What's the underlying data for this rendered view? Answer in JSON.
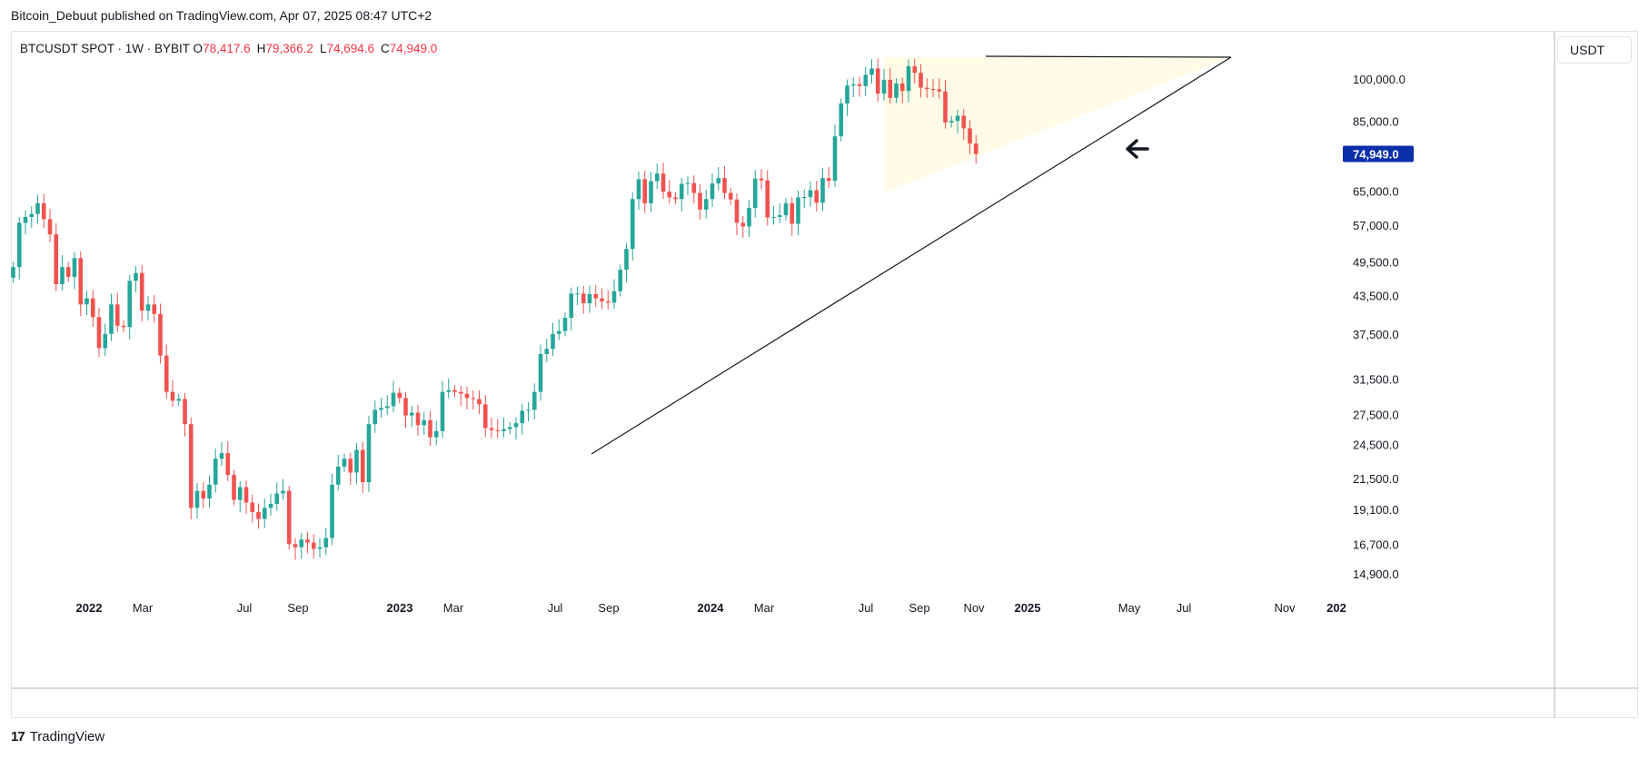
{
  "header": {
    "publisher": "Bitcoin_Debuut published on TradingView.com, Apr 07, 2025 08:47 UTC+2"
  },
  "legend": {
    "symbol": "BTCUSDT SPOT · 1W · BYBIT",
    "open_label": "O",
    "open": "78,417.6",
    "high_label": "H",
    "high": "79,366.2",
    "low_label": "L",
    "low": "74,694.6",
    "close_label": "C",
    "close": "74,949.0"
  },
  "currency_button": "USDT",
  "footer": {
    "brand": "TradingView",
    "logo": "17"
  },
  "colors": {
    "up": "#26a69a",
    "down": "#ef5350",
    "price_tag": "#0a2fa8",
    "zone": "#fffbe6"
  },
  "chart_data": {
    "type": "candlestick",
    "symbol": "BTCUSDT",
    "interval": "1W",
    "y_scale": "log",
    "last_price": "74,949.0",
    "y_ticks": [
      "100,000.0",
      "85,000.0",
      "65,000.0",
      "57,000.0",
      "49,500.0",
      "43,500.0",
      "37,500.0",
      "31,500.0",
      "27,500.0",
      "24,500.0",
      "21,500.0",
      "19,100.0",
      "16,700.0",
      "14,900.0"
    ],
    "x_ticks": [
      "2022",
      "Mar",
      "Jul",
      "Sep",
      "2023",
      "Mar",
      "Jul",
      "Sep",
      "2024",
      "Mar",
      "Jul",
      "Sep",
      "Nov",
      "2025",
      "May",
      "Jul",
      "Nov",
      "202"
    ],
    "closes": [
      48500,
      57500,
      58800,
      59500,
      62000,
      58300,
      55000,
      45400,
      48500,
      46700,
      50200,
      42000,
      43000,
      40000,
      35500,
      37500,
      42000,
      38700,
      38500,
      46000,
      47400,
      41000,
      42000,
      40500,
      34500,
      30000,
      29000,
      29200,
      26500,
      19200,
      20500,
      19900,
      21000,
      23200,
      23700,
      21800,
      19800,
      20800,
      19600,
      18900,
      18400,
      19200,
      19500,
      20300,
      20500,
      16700,
      16500,
      17000,
      16800,
      16400,
      16500,
      17100,
      21000,
      22500,
      23200,
      22000,
      24000,
      21200,
      26500,
      28000,
      28200,
      28400,
      29900,
      29300,
      27400,
      27700,
      26400,
      26900,
      25200,
      25800,
      30000,
      30200,
      30000,
      29800,
      29300,
      29200,
      28600,
      26100,
      25900,
      25800,
      26000,
      26200,
      26600,
      27900,
      28000,
      30000,
      34700,
      35400,
      37500,
      37900,
      39900,
      43800,
      43800,
      42200,
      43700,
      43000,
      42500,
      42300,
      44200,
      48000,
      52000,
      63000,
      68000,
      62000,
      67500,
      69500,
      64800,
      63400,
      63000,
      66800,
      67000,
      64500,
      60500,
      63000,
      66900,
      68300,
      64500,
      62900,
      57500,
      56700,
      60900,
      68200,
      67700,
      58700,
      58800,
      59200,
      62000,
      57300,
      63400,
      63500,
      65200,
      62100,
      68300,
      67600,
      80200,
      91000,
      97500,
      98000,
      97300,
      101600,
      104100,
      94500,
      99700,
      93000,
      98300,
      95500,
      105000,
      102400,
      96700,
      96200,
      96100,
      95300,
      84600,
      85100,
      86800,
      82700,
      78000,
      74949
    ],
    "support_line_from": {
      "date": "2023-08-21",
      "price": 23500
    },
    "support_line_to": {
      "date": "2025-07-28",
      "price": 108000
    },
    "resistance_price": 108000,
    "annotation": "arrow pointing left at last candle"
  }
}
